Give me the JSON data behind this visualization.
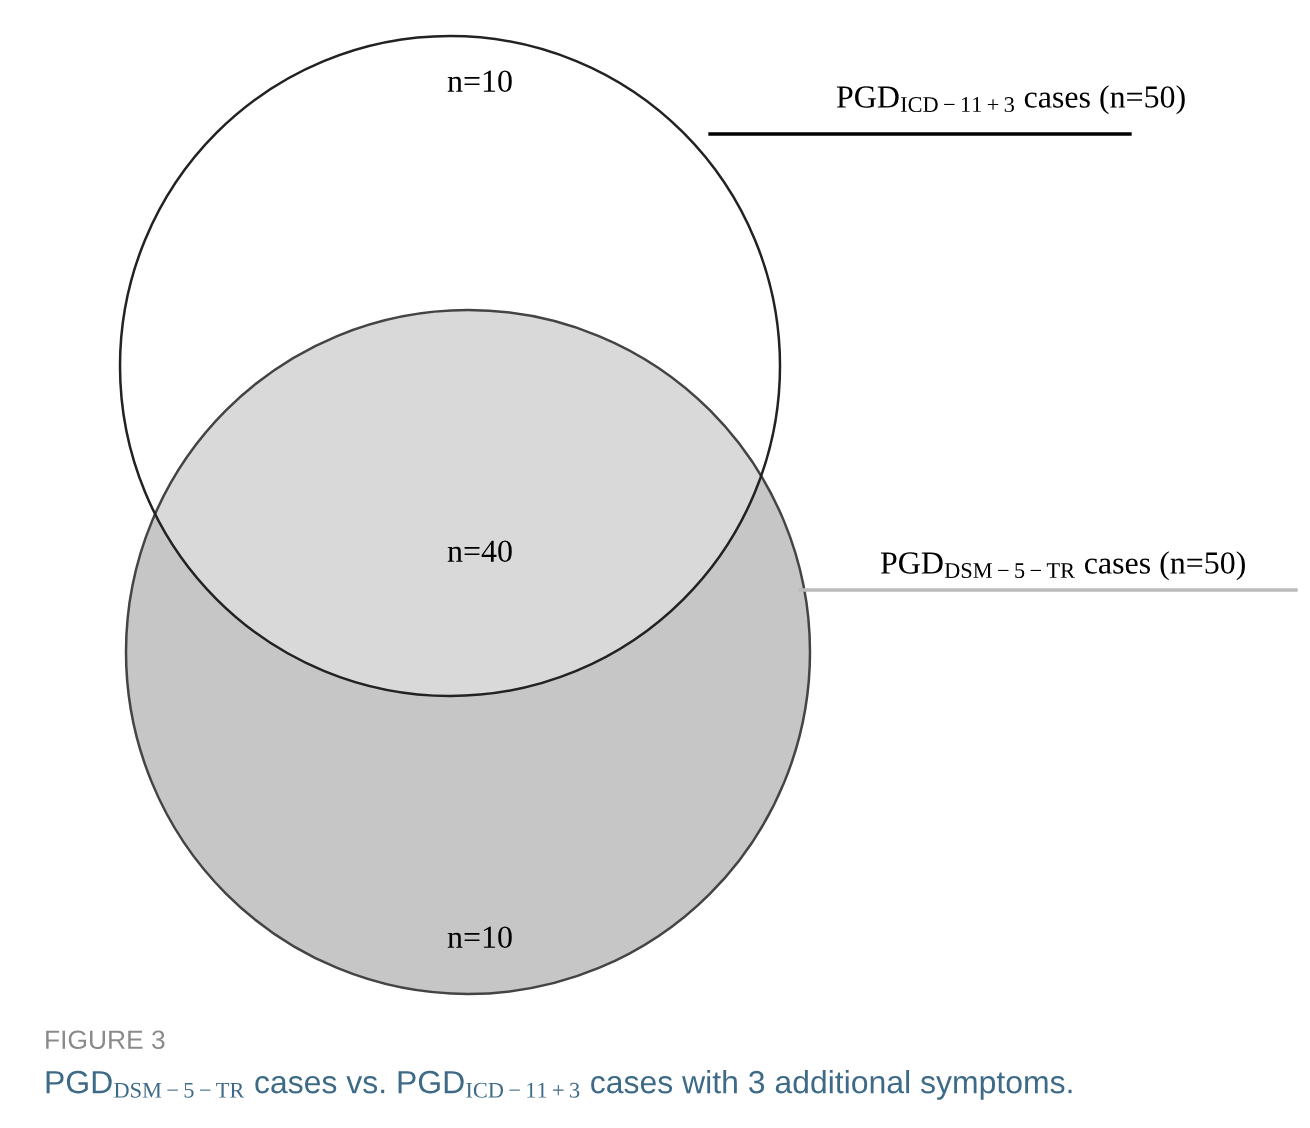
{
  "chart_data": {
    "type": "other",
    "title": "FIGURE 3",
    "subtitle": "PGD$_{DSM−5−TR}$ cases vs. PGD$_{ICD−11+3}$ cases with 3 additional symptoms.",
    "categories": [
      null,
      null,
      null
    ],
    "values": [
      10,
      40,
      10
    ],
    "value_labels": [
      "n=10",
      "n=40",
      "n=10"
    ],
    "colors": [
      "#ffffff",
      "#d9d9d9",
      "#c6c6c6"
    ],
    "annotations": [
      "PGD$_{ICD−11+3}$ cases (n=50)",
      "PGD$_{DSM−5−TR}$ cases (n=50)"
    ]
  }
}
